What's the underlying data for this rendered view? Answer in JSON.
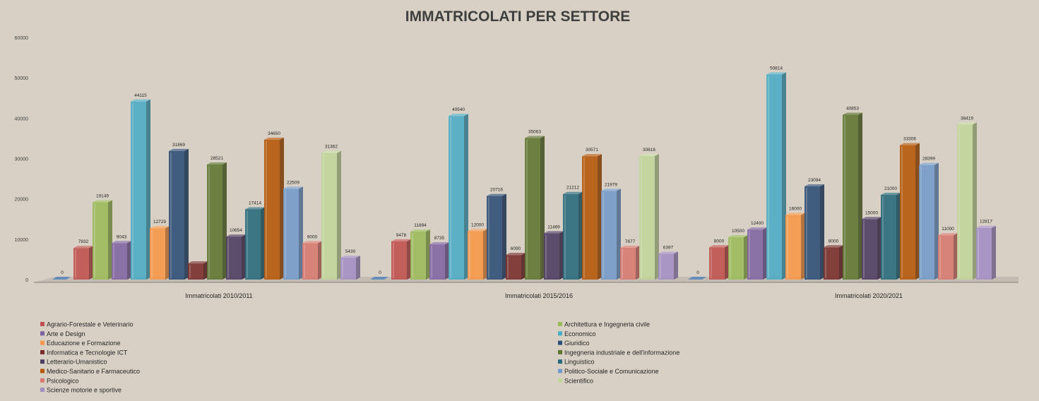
{
  "chart_data": {
    "type": "bar",
    "title": "IMMATRICOLATI PER SETTORE",
    "xlabel": "",
    "ylabel": "",
    "ylim": [
      0,
      60000
    ],
    "yticks": [
      "0",
      "10000",
      "20000",
      "30000",
      "40000",
      "50000",
      "60000"
    ],
    "legend_position": "bottom",
    "categories": [
      "Immatricolati 2010/2011",
      "Immatricolati 2015/2016",
      "Immatricolati 2020/2021"
    ],
    "series": [
      {
        "name": "Agrario-Forestale e Veterinario",
        "color": "#c0504d",
        "values": [
          7832,
          9478,
          8000
        ]
      },
      {
        "name": "Architettura e Ingegneria civile",
        "color": "#9bbb59",
        "values": [
          19149,
          11894,
          10500
        ]
      },
      {
        "name": "Arte e Design",
        "color": "#8064a2",
        "values": [
          9043,
          8735,
          12400
        ]
      },
      {
        "name": "Economico",
        "color": "#4bacc6",
        "values": [
          44115,
          40540,
          50814
        ]
      },
      {
        "name": "Educazione e Formazione",
        "color": "#f79646",
        "values": [
          12729,
          12000,
          16000
        ]
      },
      {
        "name": "Giuridico",
        "color": "#2c4d75",
        "values": [
          31869,
          20716,
          23094
        ]
      },
      {
        "name": "Informatica e Tecnologie ICT",
        "color": "#772c2a",
        "values": [
          4000,
          6090,
          8000
        ]
      },
      {
        "name": "Ingegneria industriale e dell'informazione",
        "color": "#5f7530",
        "values": [
          28521,
          35063,
          40853
        ]
      },
      {
        "name": "Letterario-Umanistico",
        "color": "#4d3b62",
        "values": [
          10654,
          11469,
          15000
        ]
      },
      {
        "name": "Linguistico",
        "color": "#276a7c",
        "values": [
          17414,
          21212,
          21000
        ]
      },
      {
        "name": "Medico-Sanitario e Farmaceutico",
        "color": "#b65708",
        "values": [
          34650,
          30571,
          33306
        ]
      },
      {
        "name": "Politico-Sociale e Comunicazione",
        "color": "#729aca",
        "values": [
          22509,
          21979,
          28399
        ]
      },
      {
        "name": "Psicologico",
        "color": "#d9796f",
        "values": [
          9000,
          7877,
          11000
        ]
      },
      {
        "name": "Scientifico",
        "color": "#c3d69b",
        "values": [
          31362,
          30616,
          38419
        ]
      },
      {
        "name": "Scienze motorie e sportive",
        "color": "#a48fc4",
        "values": [
          5430,
          6397,
          12817
        ]
      }
    ],
    "data_labels": [
      [
        "7832",
        "19149",
        "9043",
        "44115",
        "12729",
        "31869",
        "",
        "28521",
        "10654",
        "17414",
        "34650",
        "22509",
        "9000",
        "31362",
        "5430"
      ],
      [
        "9478",
        "11894",
        "8735",
        "40540",
        "12000",
        "20716",
        "6090",
        "35063",
        "11469",
        "21212",
        "30571",
        "21979",
        "7877",
        "30616",
        "6397"
      ],
      [
        "8000",
        "10500",
        "12400",
        "50814",
        "16000",
        "23094",
        "8000",
        "40853",
        "15000",
        "21000",
        "33306",
        "28399",
        "11000",
        "38419",
        "12817"
      ]
    ],
    "zero_label": "0"
  }
}
